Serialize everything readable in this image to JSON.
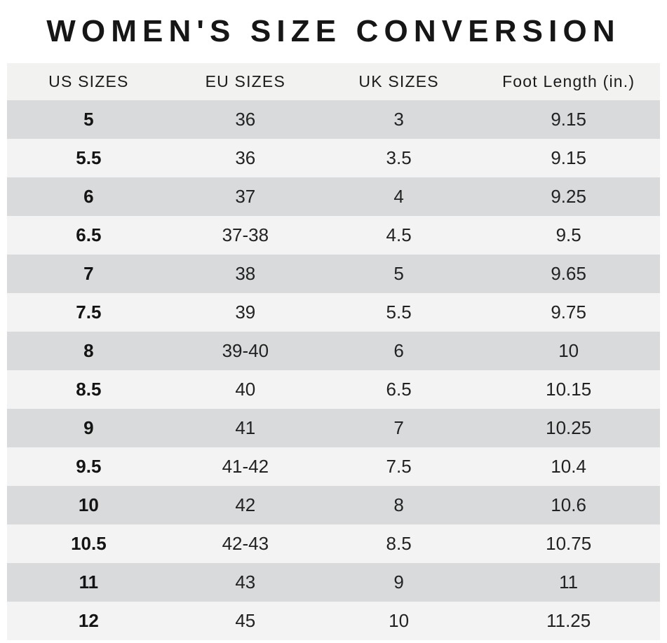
{
  "chart_data": {
    "type": "table",
    "title": "WOMEN'S SIZE CONVERSION",
    "columns": [
      "US SIZES",
      "EU SIZES",
      "UK SIZES",
      "Foot Length (in.)"
    ],
    "rows": [
      {
        "us": "5",
        "eu": "36",
        "uk": "3",
        "foot_length_in": "9.15"
      },
      {
        "us": "5.5",
        "eu": "36",
        "uk": "3.5",
        "foot_length_in": "9.15"
      },
      {
        "us": "6",
        "eu": "37",
        "uk": "4",
        "foot_length_in": "9.25"
      },
      {
        "us": "6.5",
        "eu": "37-38",
        "uk": "4.5",
        "foot_length_in": "9.5"
      },
      {
        "us": "7",
        "eu": "38",
        "uk": "5",
        "foot_length_in": "9.65"
      },
      {
        "us": "7.5",
        "eu": "39",
        "uk": "5.5",
        "foot_length_in": "9.75"
      },
      {
        "us": "8",
        "eu": "39-40",
        "uk": "6",
        "foot_length_in": "10"
      },
      {
        "us": "8.5",
        "eu": "40",
        "uk": "6.5",
        "foot_length_in": "10.15"
      },
      {
        "us": "9",
        "eu": "41",
        "uk": "7",
        "foot_length_in": "10.25"
      },
      {
        "us": "9.5",
        "eu": "41-42",
        "uk": "7.5",
        "foot_length_in": "10.4"
      },
      {
        "us": "10",
        "eu": "42",
        "uk": "8",
        "foot_length_in": "10.6"
      },
      {
        "us": "10.5",
        "eu": "42-43",
        "uk": "8.5",
        "foot_length_in": "10.75"
      },
      {
        "us": "11",
        "eu": "43",
        "uk": "9",
        "foot_length_in": "11"
      },
      {
        "us": "12",
        "eu": "45",
        "uk": "10",
        "foot_length_in": "11.25"
      }
    ],
    "layout": {
      "grid": "off",
      "stripes": "alternating rows, odd dark / even light"
    }
  },
  "colors": {
    "page_bg": "#ffffff",
    "header_bg": "#f2f2f1",
    "row_dark": "#d9dadb",
    "row_light": "#f3f3f4",
    "text": "#1c1c1c"
  }
}
